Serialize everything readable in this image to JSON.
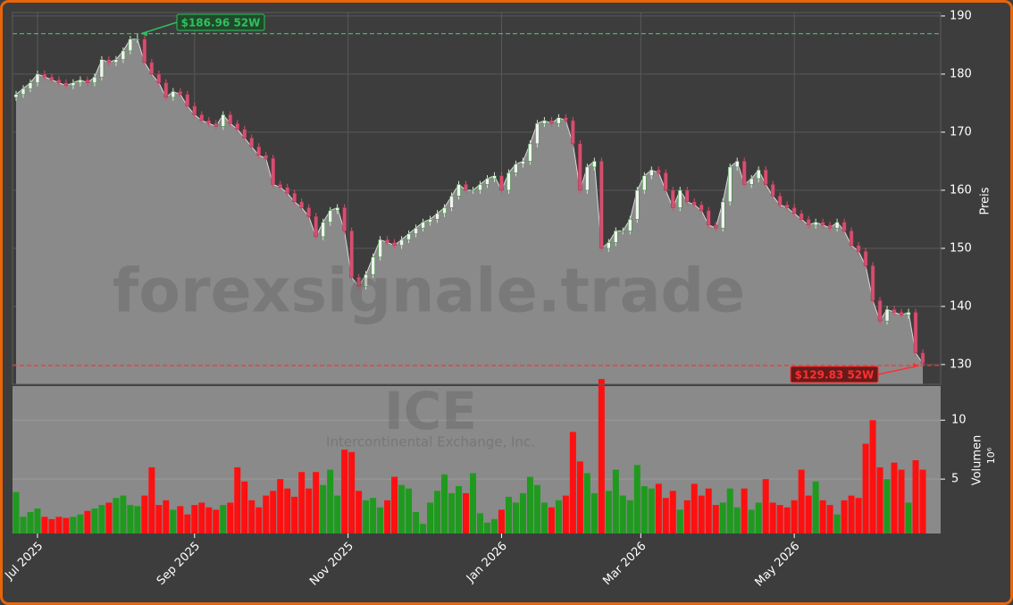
{
  "chart_data": {
    "type": "candlestick",
    "x": [
      0,
      2,
      4,
      6,
      8,
      10,
      12,
      14,
      16,
      18,
      20,
      22,
      24,
      26,
      28,
      30,
      32,
      34,
      36,
      38,
      40,
      42,
      44,
      46,
      48,
      50,
      52,
      54,
      56,
      58,
      60,
      62,
      64,
      66,
      68,
      70,
      72,
      74,
      76,
      78,
      80,
      82,
      84,
      86,
      88,
      90,
      92,
      94,
      96,
      98,
      100,
      102,
      104,
      106,
      108,
      110,
      112,
      114,
      116,
      118,
      120,
      122,
      124,
      126,
      128,
      130,
      132,
      134,
      136,
      138,
      140,
      142,
      144,
      146,
      148,
      150,
      152,
      154,
      156,
      158,
      160,
      162,
      164,
      166,
      168,
      170,
      172,
      174,
      176,
      178,
      180,
      182,
      184,
      186,
      188,
      190,
      192,
      194,
      196,
      198,
      200,
      202,
      204,
      206,
      208,
      210,
      212,
      214,
      216,
      218,
      220,
      222,
      224,
      226,
      228,
      230,
      232,
      234,
      236,
      238,
      240,
      242,
      244,
      246,
      248,
      250,
      252,
      254
    ],
    "open": [
      176,
      176.5,
      177.5,
      178.5,
      180,
      179.5,
      179,
      178.5,
      178,
      178.5,
      179,
      178.5,
      179.5,
      182.5,
      182,
      182.5,
      184,
      186,
      186,
      182,
      180,
      178.5,
      176,
      177,
      176.5,
      174.5,
      173,
      172,
      171.5,
      171,
      173,
      171.5,
      170.5,
      169,
      167.5,
      166,
      165.5,
      161,
      160.5,
      159.5,
      158,
      157,
      155.5,
      152,
      154.5,
      156.5,
      157,
      153,
      145,
      143.5,
      145.5,
      148.5,
      151.5,
      151,
      150.5,
      151.5,
      152.5,
      153.5,
      154.5,
      155,
      156,
      157,
      159,
      161,
      160,
      160,
      161,
      162,
      162.5,
      160,
      163,
      164.5,
      165,
      168,
      171.5,
      172,
      171.5,
      172.5,
      172,
      168,
      160,
      164,
      165,
      150,
      151,
      153,
      153,
      155,
      160,
      162.5,
      163.5,
      163,
      160,
      157,
      160,
      158,
      157.5,
      156.5,
      154,
      153.5,
      158,
      164,
      165,
      161,
      162,
      163.5,
      161,
      159,
      157.5,
      157,
      156,
      155,
      154,
      154.5,
      154,
      153.5,
      154.5,
      153,
      150.5,
      149.5,
      147,
      141,
      137.5,
      139.5,
      139,
      138.5,
      139,
      132
    ],
    "high": [
      177.1,
      178.1,
      179.1,
      180.6,
      180.6,
      180.1,
      179.6,
      179.1,
      179.1,
      179.6,
      179.6,
      180.1,
      183.1,
      183.1,
      183.1,
      184.6,
      186.6,
      186.96,
      186.6,
      182.6,
      180.6,
      179.1,
      177.6,
      177.6,
      177.1,
      175.1,
      173.6,
      172.6,
      172.1,
      173.6,
      173.6,
      172.1,
      171.1,
      169.6,
      168.1,
      166.6,
      166.1,
      161.6,
      161.1,
      160.1,
      158.6,
      157.6,
      156.1,
      155.1,
      157.1,
      157.6,
      157.6,
      153.6,
      145.6,
      146.1,
      149.1,
      152.1,
      152.1,
      151.6,
      152.1,
      153.1,
      154.1,
      155.1,
      155.6,
      156.6,
      157.6,
      159.6,
      161.6,
      161.6,
      160.6,
      161.6,
      162.6,
      163.1,
      163.1,
      163.6,
      165.1,
      165.6,
      168.6,
      172.1,
      172.6,
      172.6,
      173.1,
      173.1,
      172.6,
      168.6,
      164.6,
      165.6,
      165.6,
      151.6,
      153.6,
      153.6,
      155.6,
      160.6,
      163.1,
      164.1,
      164.1,
      163.6,
      160.6,
      160.6,
      160.6,
      158.6,
      158.1,
      157.1,
      154.6,
      158.6,
      164.6,
      165.6,
      165.6,
      162.6,
      164.1,
      164.1,
      161.6,
      159.6,
      158.1,
      157.6,
      156.6,
      155.6,
      155.1,
      155.1,
      154.6,
      155.1,
      155.1,
      153.6,
      151.1,
      150.1,
      147.6,
      141.6,
      140.1,
      140.1,
      139.6,
      139.6,
      139.6,
      132.6
    ],
    "low": [
      175.4,
      175.9,
      176.9,
      177.9,
      178.9,
      178.4,
      177.9,
      177.4,
      177.4,
      177.9,
      177.9,
      177.9,
      178.9,
      181.4,
      181.4,
      181.9,
      183.4,
      185.4,
      181.4,
      179.4,
      177.9,
      175.4,
      175.4,
      175.9,
      173.9,
      172.4,
      171.4,
      170.9,
      170.4,
      170.4,
      170.9,
      169.9,
      168.4,
      166.9,
      165.4,
      164.9,
      160.4,
      159.9,
      158.9,
      157.4,
      156.4,
      154.9,
      151.4,
      151.4,
      153.9,
      155.9,
      152.4,
      144.4,
      142.9,
      142.9,
      144.9,
      147.9,
      150.4,
      149.9,
      149.9,
      150.9,
      151.9,
      152.9,
      153.9,
      154.4,
      155.4,
      156.4,
      158.4,
      159.4,
      159.4,
      159.4,
      160.4,
      161.4,
      159.4,
      159.4,
      162.4,
      163.9,
      164.4,
      167.4,
      170.9,
      170.9,
      170.9,
      171.4,
      167.4,
      159.4,
      159.4,
      163.4,
      149.4,
      149.4,
      150.4,
      152.4,
      152.4,
      154.4,
      159.4,
      161.9,
      162.4,
      159.4,
      156.4,
      156.4,
      157.4,
      156.9,
      155.9,
      153.4,
      152.9,
      152.9,
      157.4,
      163.4,
      160.4,
      160.4,
      161.4,
      160.4,
      158.4,
      156.9,
      156.4,
      155.4,
      154.4,
      153.4,
      153.4,
      153.4,
      152.9,
      152.9,
      152.4,
      149.9,
      148.9,
      146.4,
      140.4,
      136.9,
      136.9,
      138.4,
      137.9,
      137.9,
      131.4,
      129.83
    ],
    "close": [
      176.5,
      177.5,
      178.5,
      180,
      179.5,
      179,
      178.5,
      178,
      178.5,
      179,
      178.5,
      179.5,
      182.5,
      182,
      182.5,
      184,
      186,
      186,
      182,
      180,
      178.5,
      176,
      177,
      176.5,
      174.5,
      173,
      172,
      171.5,
      171,
      173,
      171.5,
      170.5,
      169,
      167.5,
      166,
      165.5,
      161,
      160.5,
      159.5,
      158,
      157,
      155.5,
      152,
      154.5,
      156.5,
      157,
      153,
      145,
      143.5,
      145.5,
      148.5,
      151.5,
      151,
      150.5,
      151.5,
      152.5,
      153.5,
      154.5,
      155,
      156,
      157,
      159,
      161,
      160,
      160,
      161,
      162,
      162.5,
      160,
      163,
      164.5,
      165,
      168,
      171.5,
      172,
      171.5,
      172.5,
      172,
      168,
      160,
      164,
      165,
      150,
      151,
      153,
      153,
      155,
      160,
      162.5,
      163.5,
      163,
      160,
      157,
      160,
      158,
      157.5,
      156.5,
      154,
      153.5,
      158,
      164,
      165,
      161,
      162,
      163.5,
      161,
      159,
      157.5,
      157,
      156,
      155,
      154,
      154.5,
      154,
      153.5,
      154.5,
      153,
      150.5,
      149.5,
      147,
      141,
      137.5,
      139.5,
      139,
      138.5,
      139,
      132,
      130.2
    ],
    "xlim": [
      -1,
      259
    ],
    "xticks": [
      {
        "value": 6,
        "label": "Jul 2025"
      },
      {
        "value": 50,
        "label": "Sep 2025"
      },
      {
        "value": 93,
        "label": "Nov 2025"
      },
      {
        "value": 136,
        "label": "Jan 2026"
      },
      {
        "value": 175,
        "label": "Mar 2026"
      },
      {
        "value": 218,
        "label": "May 2026"
      }
    ],
    "ylim": [
      126.6,
      190.6
    ],
    "yticks": [
      130,
      140,
      150,
      160,
      170,
      180,
      190
    ],
    "y_label": "Preis",
    "grid": true,
    "area_color": "#8a8a8a",
    "up_color": "#f2f2f2",
    "down_color": "#d4506f",
    "volume": {
      "label": "Volumen",
      "unit": "10⁶",
      "up_color": "#1f9a1f",
      "down_color": "#ff1010",
      "ylim": [
        0.38,
        12.9
      ],
      "yticks": [
        5,
        10
      ],
      "values": [
        3.9,
        1.8,
        2.2,
        2.5,
        1.8,
        1.6,
        1.8,
        1.7,
        1.8,
        2.0,
        2.3,
        2.5,
        2.8,
        3.0,
        3.4,
        3.6,
        2.8,
        2.7,
        3.6,
        6.0,
        2.8,
        3.2,
        2.4,
        2.7,
        2.0,
        2.8,
        3.0,
        2.6,
        2.4,
        2.8,
        3.0,
        6.0,
        4.8,
        3.2,
        2.6,
        3.6,
        4.0,
        5.0,
        4.2,
        3.5,
        5.6,
        4.2,
        5.6,
        4.5,
        5.8,
        3.6,
        7.5,
        7.3,
        4.0,
        3.2,
        3.4,
        2.6,
        3.2,
        5.2,
        4.5,
        4.2,
        2.2,
        1.2,
        3.0,
        4.0,
        5.4,
        3.8,
        4.4,
        3.8,
        5.5,
        2.1,
        1.3,
        1.6,
        2.4,
        3.5,
        3.0,
        3.8,
        5.2,
        4.5,
        3.0,
        2.6,
        3.2,
        3.6,
        9.0,
        6.5,
        5.5,
        3.8,
        13.5,
        4.0,
        5.8,
        3.6,
        3.2,
        6.2,
        4.4,
        4.2,
        4.6,
        3.4,
        4.0,
        2.4,
        3.2,
        4.6,
        3.6,
        4.2,
        2.8,
        3.0,
        4.2,
        2.6,
        4.2,
        2.4,
        3.0,
        5.0,
        3.0,
        2.8,
        2.6,
        3.2,
        5.8,
        3.6,
        4.8,
        3.2,
        2.8,
        2.0,
        3.2,
        3.6,
        3.4,
        8.0,
        10.0,
        6.0,
        5.0,
        6.4,
        5.8,
        3.0,
        6.6,
        5.8
      ]
    },
    "annotations": [
      {
        "label": "$186.96 52W",
        "value": 186.96,
        "x": 34,
        "color": "#2fc060",
        "box": "#1f4a2a"
      },
      {
        "label": "$129.83 52W",
        "value": 129.83,
        "x": 254,
        "color": "#ff3030",
        "box": "#6a1a1a"
      }
    ],
    "watermark": [
      "forexsignale.trade",
      "ICE",
      "Intercontinental Exchange, Inc."
    ]
  }
}
